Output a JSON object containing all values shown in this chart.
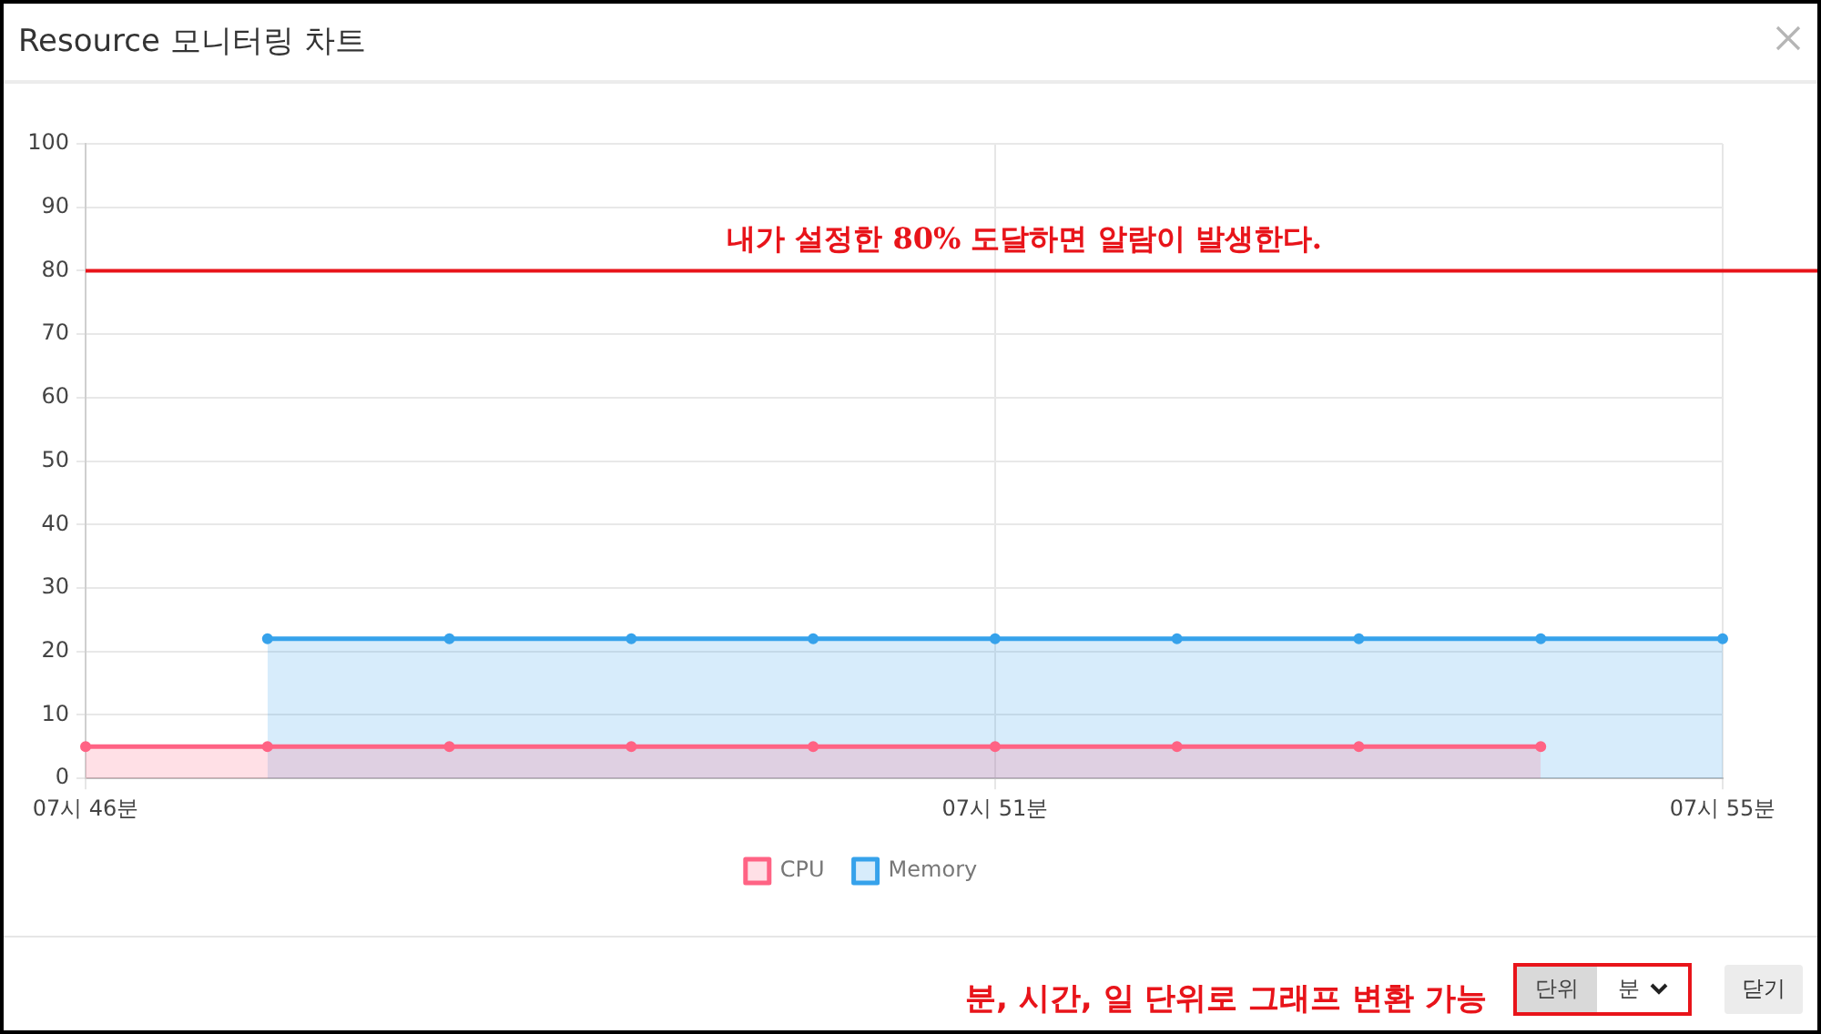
{
  "chart_data": {
    "type": "area",
    "title": "Resource 모니터링 차트",
    "categories": [
      "07시 46분",
      null,
      null,
      null,
      null,
      "07시 51분",
      null,
      null,
      null,
      "07시 55분"
    ],
    "series": [
      {
        "name": "CPU",
        "color": "#ff6384",
        "values": [
          5,
          5,
          5,
          5,
          5,
          5,
          5,
          5,
          5,
          null
        ]
      },
      {
        "name": "Memory",
        "color": "#36a2eb",
        "values": [
          null,
          22,
          22,
          22,
          22,
          22,
          22,
          22,
          22,
          22
        ]
      }
    ],
    "ylim": [
      0,
      100
    ],
    "yticks": [
      0,
      10,
      20,
      30,
      40,
      50,
      60,
      70,
      80,
      90,
      100
    ],
    "ref_lines": [
      {
        "axis": "y",
        "value": 80,
        "label": "내가 설정한 80% 도달하면 알람이 발생한다.",
        "color": "#e8141a"
      }
    ],
    "annotations": [
      "분, 시간, 일 단위로 그래프 변환 가능",
      "단위",
      "분",
      "닫기"
    ],
    "grid": true,
    "legend": "bottom",
    "marker": "circle",
    "line_style": "solid"
  }
}
